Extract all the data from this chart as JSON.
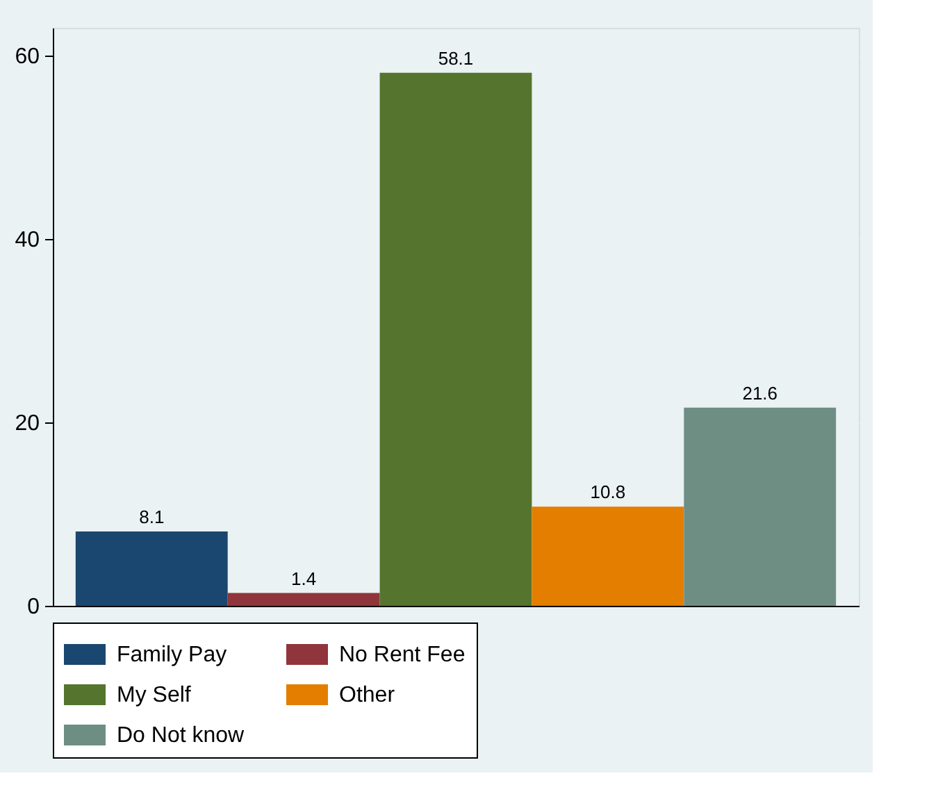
{
  "chart_data": {
    "type": "bar",
    "categories": [
      null
    ],
    "series": [
      {
        "name": "Family Pay",
        "color": "#1a476f",
        "values": [
          8.1
        ]
      },
      {
        "name": "No Rent Fee",
        "color": "#90353b",
        "values": [
          1.4
        ]
      },
      {
        "name": "My Self",
        "color": "#55752f",
        "values": [
          58.1
        ]
      },
      {
        "name": "Other",
        "color": "#e37e00",
        "values": [
          10.8
        ]
      },
      {
        "name": "Do Not know",
        "color": "#6e8e84",
        "values": [
          21.6
        ]
      }
    ],
    "ylim": [
      0,
      63
    ],
    "yticks": [
      0,
      20,
      40,
      60
    ],
    "grid": "y",
    "data_labels": true,
    "legend": "bottom",
    "tick_labels": "y"
  }
}
